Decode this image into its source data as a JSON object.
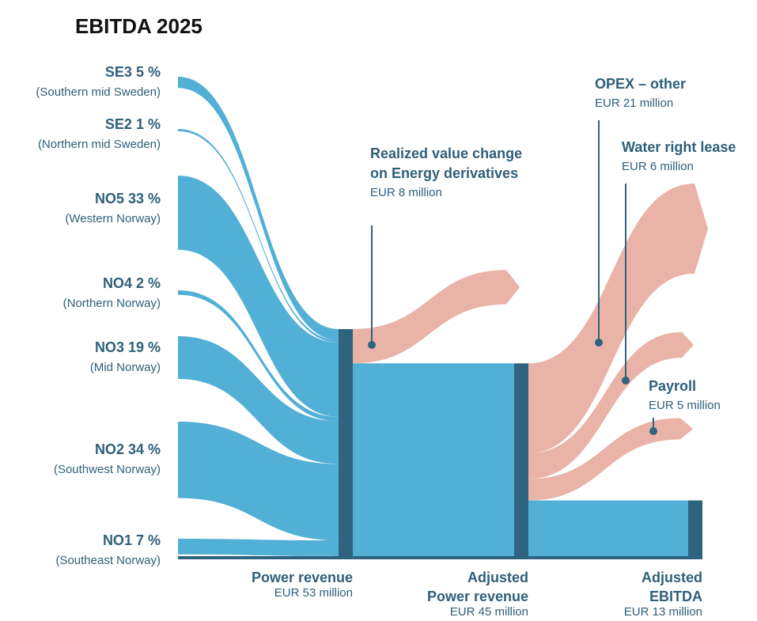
{
  "chart_data": {
    "type": "sankey",
    "title": "EBITDA 2025",
    "colors": {
      "source": "#52afd6",
      "node": "#2f6480",
      "outflow": "#e9b3a7"
    },
    "sources": [
      {
        "name": "SE3",
        "value": 5,
        "value_label": "5 %",
        "region": "(Southern mid Sweden)"
      },
      {
        "name": "SE2",
        "value": 1,
        "value_label": "1 %",
        "region": "(Northern mid Sweden)"
      },
      {
        "name": "NO5",
        "value": 33,
        "value_label": "33 %",
        "region": "(Western Norway)"
      },
      {
        "name": "NO4",
        "value": 2,
        "value_label": "2 %",
        "region": "(Northern Norway)"
      },
      {
        "name": "NO3",
        "value": 19,
        "value_label": "19 %",
        "region": "(Mid Norway)"
      },
      {
        "name": "NO2",
        "value": 34,
        "value_label": "34 %",
        "region": "(Southwest Norway)"
      },
      {
        "name": "NO1",
        "value": 7,
        "value_label": "7 %",
        "region": "(Southeast Norway)"
      }
    ],
    "nodes": [
      {
        "name": [
          "Power revenue"
        ],
        "value": 53,
        "value_label": "EUR 53 million",
        "outflows": [
          {
            "name": [
              "Realized value change",
              "on Energy derivatives"
            ],
            "value": 8,
            "value_label": "EUR 8 million"
          }
        ]
      },
      {
        "name": [
          "Adjusted",
          "Power revenue"
        ],
        "value": 45,
        "value_label": "EUR 45 million",
        "outflows": [
          {
            "name": [
              "OPEX – other"
            ],
            "value": 21,
            "value_label": "EUR 21 million"
          },
          {
            "name": [
              "Water right lease"
            ],
            "value": 6,
            "value_label": "EUR 6 million"
          },
          {
            "name": [
              "Payroll"
            ],
            "value": 5,
            "value_label": "EUR 5 million"
          }
        ]
      },
      {
        "name": [
          "Adjusted",
          "EBITDA"
        ],
        "value": 13,
        "value_label": "EUR 13 million",
        "outflows": []
      }
    ]
  }
}
